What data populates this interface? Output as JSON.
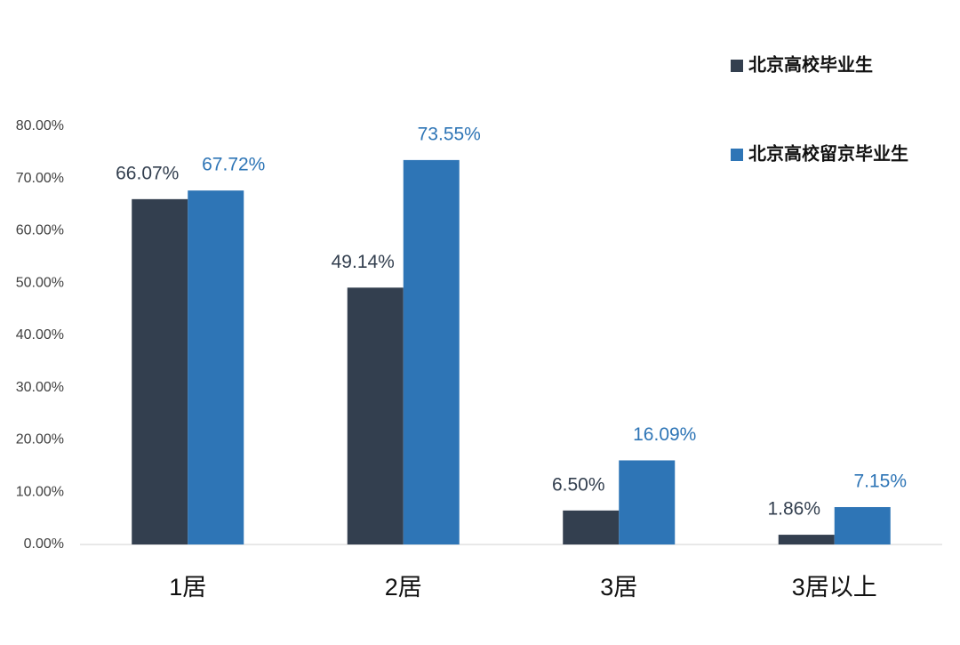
{
  "chart_data": {
    "type": "bar",
    "categories": [
      "1居",
      "2居",
      "3居",
      "3居以上"
    ],
    "series": [
      {
        "name": "北京高校毕业生",
        "color": "#333f4f",
        "values": [
          66.07,
          49.14,
          6.5,
          1.86
        ],
        "value_labels": [
          "66.07%",
          "49.14%",
          "6.50%",
          "1.86%"
        ]
      },
      {
        "name": "北京高校留京毕业生",
        "color": "#2e75b6",
        "values": [
          67.72,
          73.55,
          16.09,
          7.15
        ],
        "value_labels": [
          "67.72%",
          "73.55%",
          "16.09%",
          "7.15%"
        ]
      }
    ],
    "ylim": [
      0,
      80
    ],
    "yticks": [
      {
        "value": 0,
        "label": "0.00%"
      },
      {
        "value": 10,
        "label": "10.00%"
      },
      {
        "value": 20,
        "label": "20.00%"
      },
      {
        "value": 30,
        "label": "30.00%"
      },
      {
        "value": 40,
        "label": "40.00%"
      },
      {
        "value": 50,
        "label": "50.00%"
      },
      {
        "value": 60,
        "label": "60.00%"
      },
      {
        "value": 70,
        "label": "70.00%"
      },
      {
        "value": 80,
        "label": "80.00%"
      }
    ],
    "grid": false,
    "legend": "top-right"
  }
}
